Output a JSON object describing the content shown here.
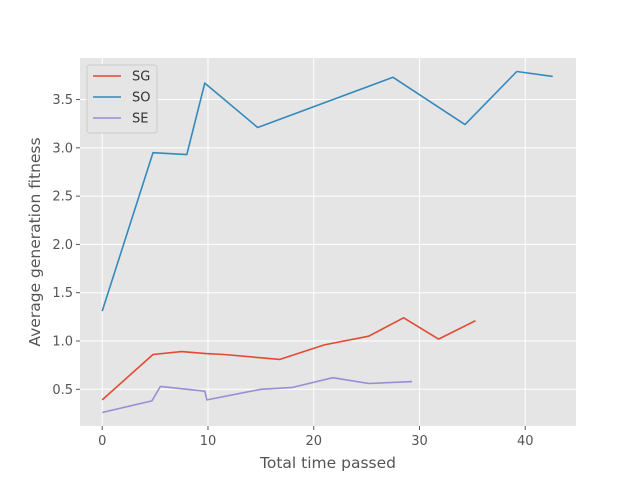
{
  "chart_data": {
    "type": "line",
    "title": "",
    "xlabel": "Total time passed",
    "ylabel": "Average generation fitness",
    "xlim": [
      -2.1,
      44.8
    ],
    "ylim": [
      0.12,
      3.93
    ],
    "xticks": [
      0,
      10,
      20,
      30,
      40
    ],
    "yticks": [
      0.5,
      1.0,
      1.5,
      2.0,
      2.5,
      3.0,
      3.5
    ],
    "xtick_labels": [
      "0",
      "10",
      "20",
      "30",
      "40"
    ],
    "ytick_labels": [
      "0.5",
      "1.0",
      "1.5",
      "2.0",
      "2.5",
      "3.0",
      "3.5"
    ],
    "grid": true,
    "background": "#e5e5e5",
    "legend_position": "upper-left",
    "series": [
      {
        "name": "SG",
        "color": "#e24a33",
        "x": [
          0,
          4.8,
          7.5,
          9.8,
          11.5,
          16.8,
          21.0,
          25.2,
          28.5,
          31.8,
          35.3
        ],
        "y": [
          0.39,
          0.86,
          0.89,
          0.87,
          0.86,
          0.81,
          0.96,
          1.05,
          1.24,
          1.02,
          1.21
        ]
      },
      {
        "name": "SO",
        "color": "#348abd",
        "x": [
          0,
          4.8,
          8.0,
          9.7,
          14.7,
          27.5,
          34.3,
          39.2,
          42.6
        ],
        "y": [
          1.31,
          2.95,
          2.93,
          3.67,
          3.21,
          3.73,
          3.24,
          3.79,
          3.74
        ]
      },
      {
        "name": "SE",
        "color": "#988ed5",
        "x": [
          0,
          4.7,
          5.5,
          9.7,
          9.9,
          15.0,
          18.0,
          21.8,
          25.2,
          29.3
        ],
        "y": [
          0.26,
          0.38,
          0.53,
          0.48,
          0.39,
          0.5,
          0.52,
          0.62,
          0.56,
          0.58
        ]
      }
    ]
  }
}
